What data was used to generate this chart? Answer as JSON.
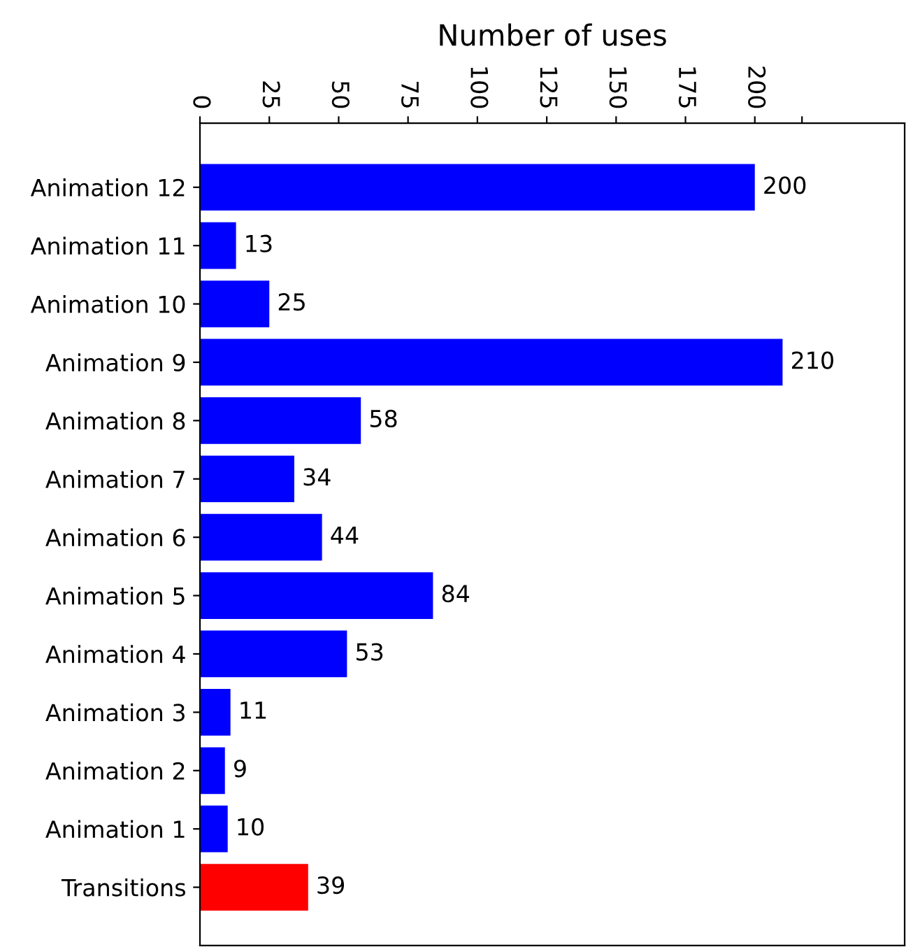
{
  "chart_data": {
    "type": "bar",
    "orientation": "horizontal",
    "xlabel": "Number of uses",
    "categories": [
      "Animation 12",
      "Animation 11",
      "Animation 10",
      "Animation 9",
      "Animation 8",
      "Animation 7",
      "Animation 6",
      "Animation 5",
      "Animation 4",
      "Animation 3",
      "Animation 2",
      "Animation 1",
      "Transitions"
    ],
    "values": [
      200,
      13,
      25,
      210,
      58,
      34,
      44,
      84,
      53,
      11,
      9,
      10,
      39
    ],
    "colors": [
      "#0000ff",
      "#0000ff",
      "#0000ff",
      "#0000ff",
      "#0000ff",
      "#0000ff",
      "#0000ff",
      "#0000ff",
      "#0000ff",
      "#0000ff",
      "#0000ff",
      "#0000ff",
      "#ff0000"
    ],
    "data_labels": true,
    "xlim": [
      0,
      254
    ],
    "xticks": [
      0,
      25,
      50,
      75,
      100,
      125,
      150,
      175,
      200,
      {
        "value": 217,
        "label": null
      }
    ]
  }
}
